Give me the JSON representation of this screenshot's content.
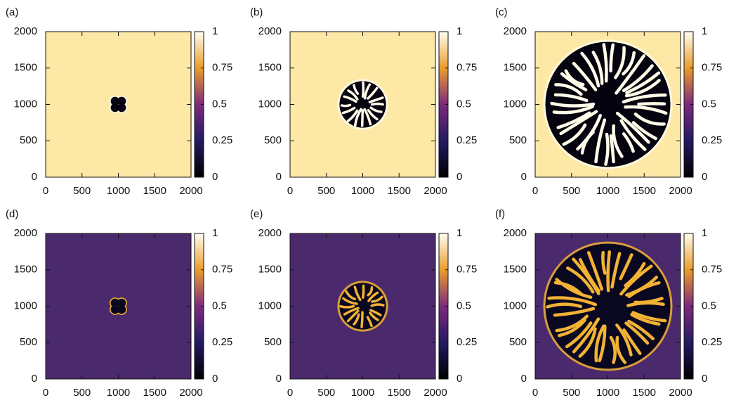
{
  "chart_data": [
    {
      "type": "heatmap",
      "label": "(a)",
      "xlim": [
        0,
        2000
      ],
      "ylim": [
        0,
        2000
      ],
      "xticks": [
        0,
        500,
        1000,
        1500,
        2000
      ],
      "yticks": [
        0,
        500,
        1000,
        1500,
        2000
      ],
      "clim": [
        0,
        1
      ],
      "cticks": [
        0,
        0.25,
        0.5,
        0.75,
        1
      ],
      "colormap": [
        "#000000",
        "#231a63",
        "#7d2a7c",
        "#eb9c2c",
        "#fffff2"
      ],
      "background_color": "#fde8a6",
      "domain_color": "#05030f",
      "finger_color": "#fffbe8"
    },
    {
      "type": "heatmap",
      "label": "(b)",
      "xlim": [
        0,
        2000
      ],
      "ylim": [
        0,
        2000
      ],
      "xticks": [
        0,
        500,
        1000,
        1500,
        2000
      ],
      "yticks": [
        0,
        500,
        1000,
        1500,
        2000
      ],
      "clim": [
        0,
        1
      ],
      "cticks": [
        0,
        0.25,
        0.5,
        0.75,
        1
      ],
      "colormap": [
        "#000000",
        "#231a63",
        "#7d2a7c",
        "#eb9c2c",
        "#fffff2"
      ],
      "background_color": "#fde8a6",
      "domain_color": "#05030f",
      "finger_color": "#fffbe8"
    },
    {
      "type": "heatmap",
      "label": "(c)",
      "xlim": [
        0,
        2000
      ],
      "ylim": [
        0,
        2000
      ],
      "xticks": [
        0,
        500,
        1000,
        1500,
        2000
      ],
      "yticks": [
        0,
        500,
        1000,
        1500,
        2000
      ],
      "clim": [
        0,
        1
      ],
      "cticks": [
        0,
        0.25,
        0.5,
        0.75,
        1
      ],
      "colormap": [
        "#000000",
        "#231a63",
        "#7d2a7c",
        "#eb9c2c",
        "#fffff2"
      ],
      "background_color": "#fde8a6",
      "domain_color": "#05030f",
      "finger_color": "#fffbe8"
    },
    {
      "type": "heatmap",
      "label": "(d)",
      "xlim": [
        0,
        2000
      ],
      "ylim": [
        0,
        2000
      ],
      "xticks": [
        0,
        500,
        1000,
        1500,
        2000
      ],
      "yticks": [
        0,
        500,
        1000,
        1500,
        2000
      ],
      "clim": [
        0,
        1
      ],
      "cticks": [
        0,
        0.25,
        0.5,
        0.75,
        1
      ],
      "colormap": [
        "#000000",
        "#231a63",
        "#7d2a7c",
        "#eb9c2c",
        "#fffff2"
      ],
      "background_color": "#4a2a6c",
      "domain_color": "#0a0820",
      "finger_color": "#f2b233"
    },
    {
      "type": "heatmap",
      "label": "(e)",
      "xlim": [
        0,
        2000
      ],
      "ylim": [
        0,
        2000
      ],
      "xticks": [
        0,
        500,
        1000,
        1500,
        2000
      ],
      "yticks": [
        0,
        500,
        1000,
        1500,
        2000
      ],
      "clim": [
        0,
        1
      ],
      "cticks": [
        0,
        0.25,
        0.5,
        0.75,
        1
      ],
      "colormap": [
        "#000000",
        "#231a63",
        "#7d2a7c",
        "#eb9c2c",
        "#fffff2"
      ],
      "background_color": "#4a2a6c",
      "domain_color": "#0a0820",
      "finger_color": "#f2b233"
    },
    {
      "type": "heatmap",
      "label": "(f)",
      "xlim": [
        0,
        2000
      ],
      "ylim": [
        0,
        2000
      ],
      "xticks": [
        0,
        500,
        1000,
        1500,
        2000
      ],
      "yticks": [
        0,
        500,
        1000,
        1500,
        2000
      ],
      "clim": [
        0,
        1
      ],
      "cticks": [
        0,
        0.25,
        0.5,
        0.75,
        1
      ],
      "colormap": [
        "#000000",
        "#231a63",
        "#7d2a7c",
        "#eb9c2c",
        "#fffff2"
      ],
      "background_color": "#4a2a6c",
      "domain_color": "#0a0820",
      "finger_color": "#f2b233"
    }
  ]
}
